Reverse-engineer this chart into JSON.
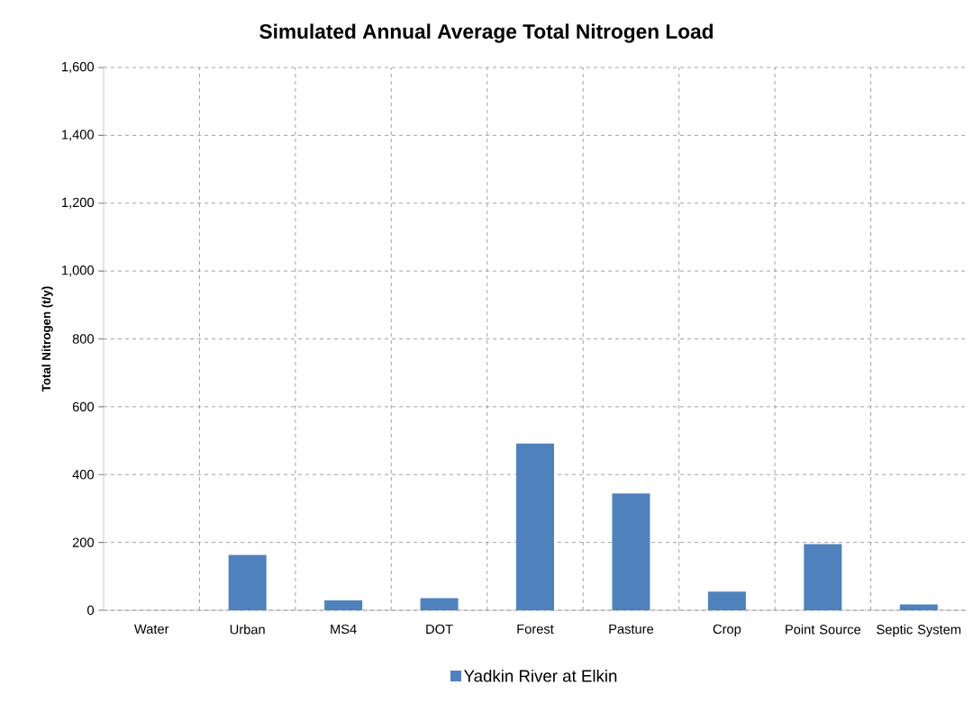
{
  "chart_data": {
    "type": "bar",
    "title": "Simulated Annual Average Total Nitrogen Load",
    "ylabel": "Total Nitrogen (t/y)",
    "categories": [
      "Water",
      "Urban",
      "MS4",
      "DOT",
      "Forest",
      "Pasture",
      "Crop",
      "Point Source",
      "Septic System"
    ],
    "series": [
      {
        "name": "Yadkin River at Elkin",
        "color": "#4f81bd",
        "values": [
          0,
          163,
          29,
          36,
          492,
          344,
          55,
          195,
          17
        ]
      }
    ],
    "ylim": [
      0,
      1600
    ],
    "yticks": [
      0,
      200,
      400,
      600,
      800,
      {
        "value": 1000,
        "label": "1,000"
      },
      {
        "value": 1200,
        "label": "1,200"
      },
      {
        "value": 1400,
        "label": "1,400"
      },
      {
        "value": 1600,
        "label": "1,600"
      }
    ],
    "grid": true,
    "legend": "bottom"
  }
}
